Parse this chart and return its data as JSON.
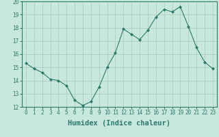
{
  "x": [
    0,
    1,
    2,
    3,
    4,
    5,
    6,
    7,
    8,
    9,
    10,
    11,
    12,
    13,
    14,
    15,
    16,
    17,
    18,
    19,
    20,
    21,
    22,
    23
  ],
  "y": [
    15.3,
    14.9,
    14.6,
    14.1,
    14.0,
    13.6,
    12.5,
    12.1,
    12.4,
    13.5,
    15.0,
    16.1,
    17.9,
    17.5,
    17.1,
    17.8,
    18.8,
    19.4,
    19.2,
    19.6,
    18.1,
    16.5,
    15.4,
    14.9
  ],
  "xlabel": "Humidex (Indice chaleur)",
  "ylim": [
    12,
    20
  ],
  "xlim": [
    -0.5,
    23.5
  ],
  "yticks": [
    12,
    13,
    14,
    15,
    16,
    17,
    18,
    19,
    20
  ],
  "xticks": [
    0,
    1,
    2,
    3,
    4,
    5,
    6,
    7,
    8,
    9,
    10,
    11,
    12,
    13,
    14,
    15,
    16,
    17,
    18,
    19,
    20,
    21,
    22,
    23
  ],
  "line_color": "#2a7a6a",
  "marker_color": "#2a7a6a",
  "bg_color": "#c8e8dd",
  "grid_color": "#a8c8bb",
  "tick_label_fontsize": 5.5,
  "xlabel_fontsize": 7.5
}
